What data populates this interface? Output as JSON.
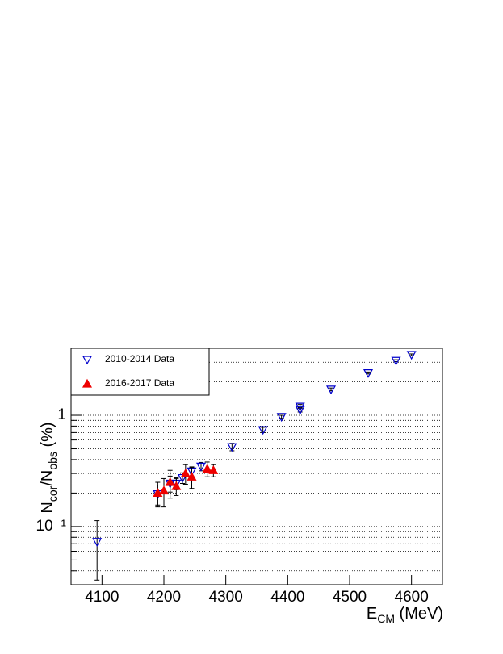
{
  "chart_data": {
    "type": "scatter",
    "xlabel": [
      "E",
      "CM",
      " (MeV)"
    ],
    "ylabel": [
      "N",
      "cor",
      "/N",
      "obs",
      " (%)"
    ],
    "xlim": [
      4050,
      4650
    ],
    "xticks": [
      4100,
      4200,
      4300,
      4400,
      4500,
      4600
    ],
    "ylim": [
      0.03,
      4
    ],
    "log_y": true,
    "yticks": [
      {
        "value": 0.1,
        "label": "10⁻¹"
      },
      1
    ],
    "yminorticks": [
      0.03,
      0.04,
      0.05,
      0.06,
      0.07,
      0.08,
      0.09,
      0.2,
      0.3,
      0.4,
      0.5,
      0.6,
      0.7,
      0.8,
      0.9,
      2,
      3,
      4
    ],
    "grid": true,
    "legend": "upper left",
    "series": [
      {
        "name": "2010-2014 Data",
        "color": "#0000cc",
        "marker": "open-down-triangle",
        "x": [
          4092,
          4190,
          4210,
          4220,
          4230,
          4245,
          4260,
          4310,
          4360,
          4390,
          4420,
          4420,
          4470,
          4530,
          4575,
          4600
        ],
        "values": [
          0.073,
          0.196,
          0.244,
          0.244,
          0.274,
          0.314,
          0.347,
          0.52,
          0.74,
          0.97,
          1.2,
          1.12,
          1.71,
          2.4,
          3.1,
          3.5
        ],
        "errors": [
          0.04,
          0.04,
          0.04,
          0.03,
          0.03,
          0.03,
          0.03,
          0.04,
          0.04,
          0.03,
          0.05,
          0.05,
          0.05,
          0.05,
          0.06,
          0.06
        ]
      },
      {
        "name": "2016-2017 Data",
        "color": "#ee0000",
        "marker": "filled-up-triangle",
        "x": [
          4190,
          4200,
          4210,
          4220,
          4235,
          4245,
          4270,
          4280
        ],
        "values": [
          0.2,
          0.21,
          0.25,
          0.23,
          0.3,
          0.28,
          0.33,
          0.32
        ],
        "errors": [
          0.05,
          0.06,
          0.07,
          0.04,
          0.06,
          0.06,
          0.05,
          0.04
        ]
      }
    ]
  }
}
